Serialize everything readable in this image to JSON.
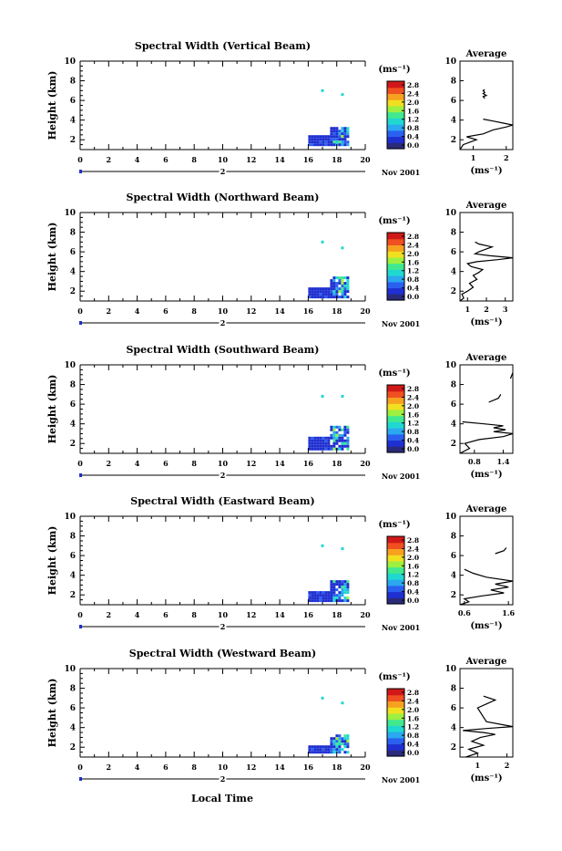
{
  "shared": {
    "y_label": "Height (km)",
    "x_ticks": [
      "0",
      "2",
      "4",
      "6",
      "8",
      "10",
      "12",
      "14",
      "16",
      "18",
      "20"
    ],
    "y_ticks": [
      "2",
      "4",
      "6",
      "8",
      "10"
    ],
    "date_label": "Nov 2001",
    "day_marker": "2",
    "units_label": "(ms⁻¹)",
    "avg_title": "Average",
    "avg_units": "(ms⁻¹)",
    "colorbar_ticks": [
      "0.0",
      "0.4",
      "0.8",
      "1.2",
      "1.6",
      "2.0",
      "2.4",
      "2.8"
    ],
    "colorbar_colors": [
      "#2a2a7a",
      "#1f2fd0",
      "#2a60f0",
      "#2aa8f0",
      "#20d8d0",
      "#40e890",
      "#9ef040",
      "#f0e020",
      "#f8a020",
      "#f05020",
      "#d01818"
    ],
    "x_axis_label": "Local Time"
  },
  "chart_data": [
    {
      "type": "heatmap",
      "title": "Spectral Width (Vertical Beam)",
      "xlim": [
        0,
        20
      ],
      "ylim": [
        1,
        10
      ],
      "colorbar_range": [
        0.0,
        3.0
      ],
      "data_region": {
        "x": [
          16.0,
          18.7
        ],
        "y": [
          1.5,
          3.3
        ]
      },
      "isolated_points": [
        {
          "x": 17.0,
          "y": 7.0
        },
        {
          "x": 18.4,
          "y": 6.6
        }
      ],
      "avg_profile": {
        "xlim": [
          0.6,
          2.2
        ],
        "xticks": [
          "1",
          "2"
        ],
        "x": [
          0.6,
          0.7,
          1.1,
          0.8,
          1.3,
          1.6,
          2.0,
          2.2,
          1.9,
          1.6,
          1.3,
          1.35,
          1.3,
          1.4,
          1.3,
          1.35,
          1.3,
          1.35
        ],
        "y": [
          1.0,
          1.5,
          2.0,
          2.3,
          2.6,
          3.0,
          3.3,
          3.5,
          3.7,
          3.9,
          4.1,
          6.2,
          6.4,
          6.5,
          6.7,
          6.8,
          7.0,
          7.1
        ]
      }
    },
    {
      "type": "heatmap",
      "title": "Spectral Width (Northward Beam)",
      "xlim": [
        0,
        20
      ],
      "ylim": [
        1,
        10
      ],
      "colorbar_range": [
        0.0,
        3.0
      ],
      "data_region": {
        "x": [
          16.0,
          18.7
        ],
        "y": [
          1.5,
          3.5
        ]
      },
      "isolated_points": [
        {
          "x": 17.0,
          "y": 7.0
        },
        {
          "x": 18.4,
          "y": 6.4
        }
      ],
      "avg_profile": {
        "xlim": [
          0.6,
          3.4
        ],
        "xticks": [
          "1",
          "2",
          "3"
        ],
        "x": [
          0.6,
          0.8,
          0.7,
          1.0,
          1.3,
          1.1,
          1.5,
          1.3,
          1.6,
          1.8,
          1.2,
          1.0,
          1.5,
          2.6,
          3.4,
          2.2,
          1.4,
          1.6,
          2.0,
          2.3,
          1.6,
          1.4
        ],
        "y": [
          1.0,
          1.3,
          1.7,
          2.0,
          2.4,
          2.8,
          3.2,
          3.6,
          3.9,
          4.2,
          4.5,
          4.8,
          5.0,
          5.2,
          5.4,
          5.6,
          5.8,
          6.0,
          6.3,
          6.5,
          6.8,
          7.0
        ]
      }
    },
    {
      "type": "heatmap",
      "title": "Spectral Width (Southward Beam)",
      "xlim": [
        0,
        20
      ],
      "ylim": [
        1,
        10
      ],
      "colorbar_range": [
        0.0,
        3.0
      ],
      "data_region": {
        "x": [
          16.0,
          18.7
        ],
        "y": [
          1.4,
          3.8
        ]
      },
      "isolated_points": [
        {
          "x": 17.0,
          "y": 6.8
        },
        {
          "x": 18.4,
          "y": 6.8
        }
      ],
      "avg_profile": {
        "xlim": [
          0.5,
          1.6
        ],
        "xticks": [
          "0.8",
          "1.4"
        ],
        "x": [
          0.5,
          0.7,
          0.6,
          0.9,
          1.4,
          1.6,
          1.2,
          1.45,
          1.2,
          1.4,
          1.0,
          0.55,
          1.1,
          1.3,
          1.35,
          1.55,
          1.6
        ],
        "y": [
          1.0,
          1.5,
          2.0,
          2.4,
          2.7,
          3.0,
          3.2,
          3.4,
          3.6,
          3.8,
          4.0,
          4.2,
          6.2,
          6.6,
          7.0,
          8.6,
          9.2
        ]
      }
    },
    {
      "type": "heatmap",
      "title": "Spectral Width (Eastward Beam)",
      "xlim": [
        0,
        20
      ],
      "ylim": [
        1,
        10
      ],
      "colorbar_range": [
        0.0,
        3.0
      ],
      "data_region": {
        "x": [
          16.0,
          18.7
        ],
        "y": [
          1.4,
          3.5
        ]
      },
      "isolated_points": [
        {
          "x": 17.0,
          "y": 7.0
        },
        {
          "x": 18.4,
          "y": 6.7
        }
      ],
      "avg_profile": {
        "xlim": [
          0.5,
          1.7
        ],
        "xticks": [
          "0.6",
          "1.6"
        ],
        "x": [
          0.5,
          0.7,
          0.6,
          1.0,
          1.5,
          1.2,
          1.6,
          1.3,
          1.7,
          1.1,
          0.8,
          0.6,
          1.3,
          1.5,
          1.55
        ],
        "y": [
          1.0,
          1.3,
          1.6,
          1.9,
          2.2,
          2.5,
          2.8,
          3.1,
          3.4,
          3.8,
          4.2,
          4.6,
          6.2,
          6.5,
          6.8
        ]
      }
    },
    {
      "type": "heatmap",
      "title": "Spectral Width (Westward Beam)",
      "xlim": [
        0,
        20
      ],
      "ylim": [
        1,
        10
      ],
      "colorbar_range": [
        0.0,
        3.0
      ],
      "data_region": {
        "x": [
          16.0,
          18.7
        ],
        "y": [
          1.4,
          3.3
        ]
      },
      "isolated_points": [
        {
          "x": 17.0,
          "y": 7.0
        },
        {
          "x": 18.4,
          "y": 6.5
        }
      ],
      "avg_profile": {
        "xlim": [
          0.4,
          2.2
        ],
        "xticks": [
          "1",
          "2"
        ],
        "x": [
          0.6,
          1.0,
          0.7,
          1.2,
          0.8,
          1.1,
          1.6,
          1.2,
          0.5,
          1.3,
          2.2,
          1.3,
          1.0,
          1.3,
          1.6,
          1.2
        ],
        "y": [
          1.0,
          1.4,
          1.8,
          2.2,
          2.6,
          3.0,
          3.3,
          3.5,
          3.7,
          3.9,
          4.1,
          4.6,
          6.0,
          6.4,
          6.8,
          7.2
        ]
      }
    }
  ]
}
